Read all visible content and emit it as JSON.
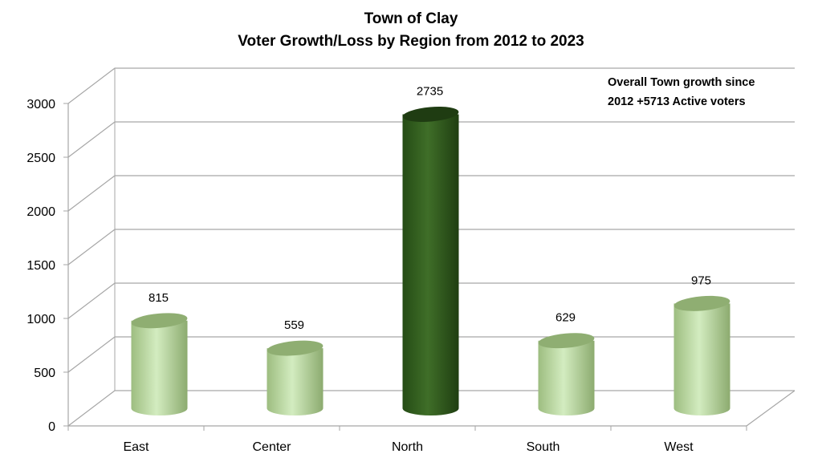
{
  "chart_data": {
    "type": "bar",
    "style": "3d-cylinder",
    "title": "Town of Clay",
    "subtitle": "Voter Growth/Loss by Region from 2012 to 2023",
    "xlabel": "",
    "ylabel": "",
    "categories": [
      "East",
      "Center",
      "North",
      "South",
      "West"
    ],
    "values": [
      815,
      559,
      2735,
      629,
      975
    ],
    "data_labels": [
      "815",
      "559",
      "2735",
      "629",
      "975"
    ],
    "highlight_index": 2,
    "ylim": [
      0,
      3000
    ],
    "yticks": [
      0,
      500,
      1000,
      1500,
      2000,
      2500,
      3000
    ],
    "ytick_labels": [
      "0",
      "500",
      "1000",
      "1500",
      "2000",
      "2500",
      "3000"
    ],
    "grid": true,
    "legend": "none",
    "annotation": [
      "Overall Town growth since",
      "2012 +5713 Active voters"
    ],
    "colors": {
      "bar": "#c9e7b3",
      "bar_edge": "#8fae72",
      "highlight": "#3b6a24",
      "highlight_edge": "#1f3c12",
      "grid": "#a6a6a6"
    }
  }
}
